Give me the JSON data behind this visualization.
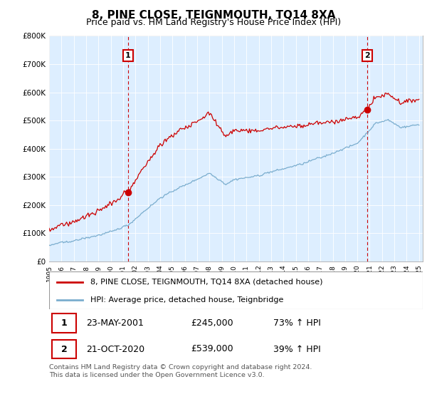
{
  "title": "8, PINE CLOSE, TEIGNMOUTH, TQ14 8XA",
  "subtitle": "Price paid vs. HM Land Registry's House Price Index (HPI)",
  "title_fontsize": 11,
  "subtitle_fontsize": 9,
  "red_color": "#cc0000",
  "blue_color": "#7aadce",
  "background_color": "#ffffff",
  "plot_bg_color": "#ddeeff",
  "grid_color": "#ffffff",
  "sale1_date": 2001.38,
  "sale1_price": 245000,
  "sale2_date": 2020.8,
  "sale2_price": 539000,
  "legend_line1": "8, PINE CLOSE, TEIGNMOUTH, TQ14 8XA (detached house)",
  "legend_line2": "HPI: Average price, detached house, Teignbridge",
  "table_row1": [
    "1",
    "23-MAY-2001",
    "£245,000",
    "73% ↑ HPI"
  ],
  "table_row2": [
    "2",
    "21-OCT-2020",
    "£539,000",
    "39% ↑ HPI"
  ],
  "footer": "Contains HM Land Registry data © Crown copyright and database right 2024.\nThis data is licensed under the Open Government Licence v3.0.",
  "ylim_min": 0,
  "ylim_max": 800000,
  "xlim_min": 1995,
  "xlim_max": 2025.3
}
